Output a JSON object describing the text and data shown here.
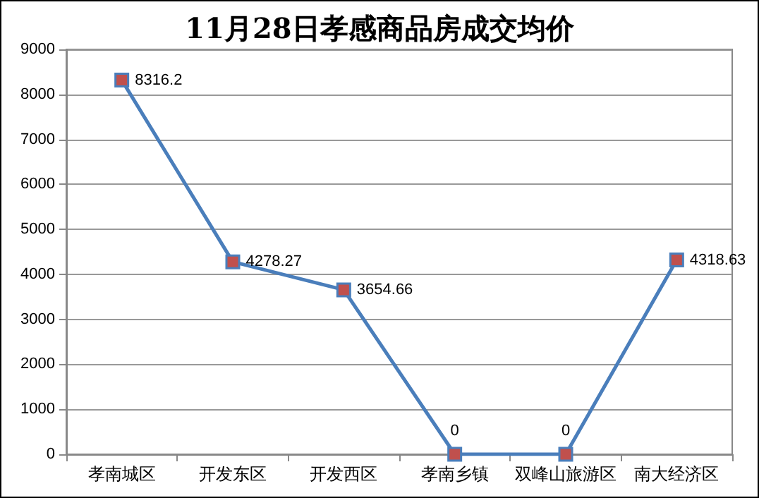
{
  "chart_data": {
    "type": "line",
    "title": "11月28日孝感商品房成交均价",
    "categories": [
      "孝南城区",
      "开发东区",
      "开发西区",
      "孝南乡镇",
      "双峰山旅游区",
      "南大经济区"
    ],
    "series": [
      {
        "color": "#4a7ebb",
        "values": [
          8316.2,
          4278.27,
          3654.66,
          0,
          0,
          4318.63
        ]
      }
    ],
    "ylim": [
      0,
      9000
    ],
    "yticks": [
      0,
      1000,
      2000,
      3000,
      4000,
      5000,
      6000,
      7000,
      8000,
      9000
    ],
    "grid": "y",
    "marker": "square",
    "line_style": "solid",
    "data_labels": true
  }
}
